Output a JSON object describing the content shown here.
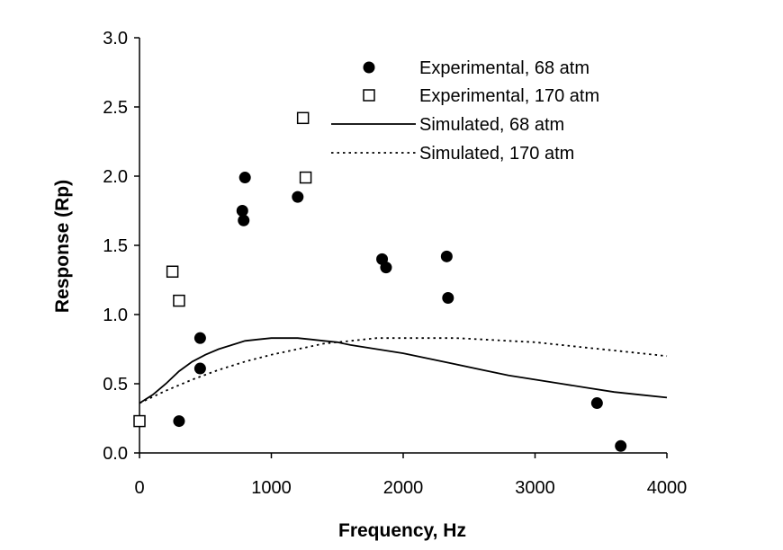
{
  "chart_data": {
    "type": "scatter",
    "title": "",
    "xlabel": "Frequency, Hz",
    "ylabel": "Response (Rp)",
    "xlim": [
      0,
      4000
    ],
    "ylim": [
      0,
      3.0
    ],
    "xticks": [
      0,
      1000,
      2000,
      3000,
      4000
    ],
    "xtick_labels": [
      "0",
      "1000",
      "2000",
      "3000",
      "4000"
    ],
    "yticks": [
      0,
      0.5,
      1.0,
      1.5,
      2.0,
      2.5,
      3.0
    ],
    "ytick_labels": [
      "0.0",
      "0.5",
      "1.0",
      "1.5",
      "2.0",
      "2.5",
      "3.0"
    ],
    "grid": false,
    "legend_position": "top-right",
    "series": [
      {
        "name": "Experimental, 68 atm",
        "kind": "scatter",
        "marker": "filled-circle",
        "x": [
          300,
          460,
          460,
          780,
          790,
          800,
          1200,
          1840,
          1870,
          2330,
          2340,
          3470,
          3650
        ],
        "y": [
          0.23,
          0.61,
          0.83,
          1.75,
          1.68,
          1.99,
          1.85,
          1.4,
          1.34,
          1.42,
          1.12,
          0.36,
          0.05
        ]
      },
      {
        "name": "Experimental, 170 atm",
        "kind": "scatter",
        "marker": "open-square",
        "x": [
          0,
          250,
          300,
          1240,
          1260
        ],
        "y": [
          0.23,
          1.31,
          1.1,
          2.42,
          1.99
        ]
      },
      {
        "name": "Simulated, 68 atm",
        "kind": "line",
        "style": "solid",
        "x": [
          0,
          100,
          200,
          300,
          400,
          500,
          600,
          700,
          800,
          900,
          1000,
          1100,
          1200,
          1300,
          1400,
          1500,
          1600,
          1800,
          2000,
          2200,
          2400,
          2600,
          2800,
          3000,
          3200,
          3400,
          3600,
          3800,
          4000
        ],
        "y": [
          0.36,
          0.42,
          0.5,
          0.59,
          0.66,
          0.71,
          0.75,
          0.78,
          0.81,
          0.82,
          0.83,
          0.83,
          0.83,
          0.82,
          0.81,
          0.8,
          0.78,
          0.75,
          0.72,
          0.68,
          0.64,
          0.6,
          0.56,
          0.53,
          0.5,
          0.47,
          0.44,
          0.42,
          0.4
        ]
      },
      {
        "name": "Simulated, 170 atm",
        "kind": "line",
        "style": "dotted",
        "x": [
          0,
          200,
          400,
          600,
          800,
          1000,
          1200,
          1400,
          1600,
          1800,
          2000,
          2200,
          2400,
          2600,
          2800,
          3000,
          3200,
          3400,
          3600,
          3800,
          4000
        ],
        "y": [
          0.36,
          0.45,
          0.53,
          0.6,
          0.66,
          0.71,
          0.75,
          0.79,
          0.81,
          0.83,
          0.83,
          0.83,
          0.83,
          0.82,
          0.81,
          0.8,
          0.78,
          0.76,
          0.74,
          0.72,
          0.7
        ]
      }
    ]
  }
}
